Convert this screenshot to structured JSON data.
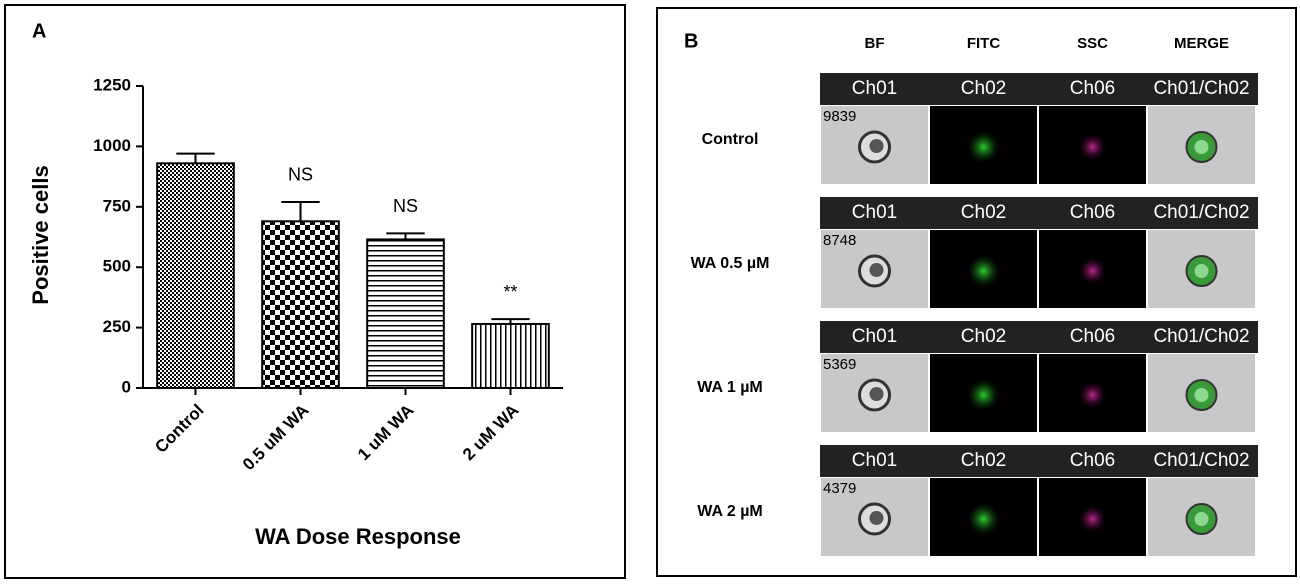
{
  "chart_data": {
    "type": "bar",
    "panel_label": "A",
    "categories": [
      "Control",
      "0.5 uM WA",
      "1 uM WA",
      "2 uM WA"
    ],
    "values": [
      930,
      690,
      615,
      265
    ],
    "errors": [
      40,
      80,
      25,
      20
    ],
    "annotations": [
      null,
      "NS",
      "NS",
      "**"
    ],
    "patterns": [
      "fine-checker",
      "checker",
      "hlines",
      "vlines"
    ],
    "color": "#000000",
    "xlabel": "WA Dose Response",
    "ylabel": "Positive cells",
    "ylim": [
      0,
      1250
    ],
    "yticks": [
      0,
      250,
      500,
      750,
      1000,
      1250
    ]
  },
  "panel_b": {
    "panel_label": "B",
    "columns": [
      "BF",
      "FITC",
      "SSC",
      "MERGE"
    ],
    "rows": [
      {
        "label": "Control",
        "channels": [
          "Ch01",
          "Ch02",
          "Ch06",
          "Ch01/Ch02"
        ],
        "count": "9839"
      },
      {
        "label": "WA 0.5 µM",
        "channels": [
          "Ch01",
          "Ch02",
          "Ch06",
          "Ch01/Ch02"
        ],
        "count": "8748"
      },
      {
        "label": "WA 1 µM",
        "channels": [
          "Ch01",
          "Ch02",
          "Ch06",
          "Ch01/Ch02"
        ],
        "count": "5369"
      },
      {
        "label": "WA 2 µM",
        "channels": [
          "Ch01",
          "Ch02",
          "Ch06",
          "Ch01/Ch02"
        ],
        "count": "4379"
      }
    ]
  }
}
